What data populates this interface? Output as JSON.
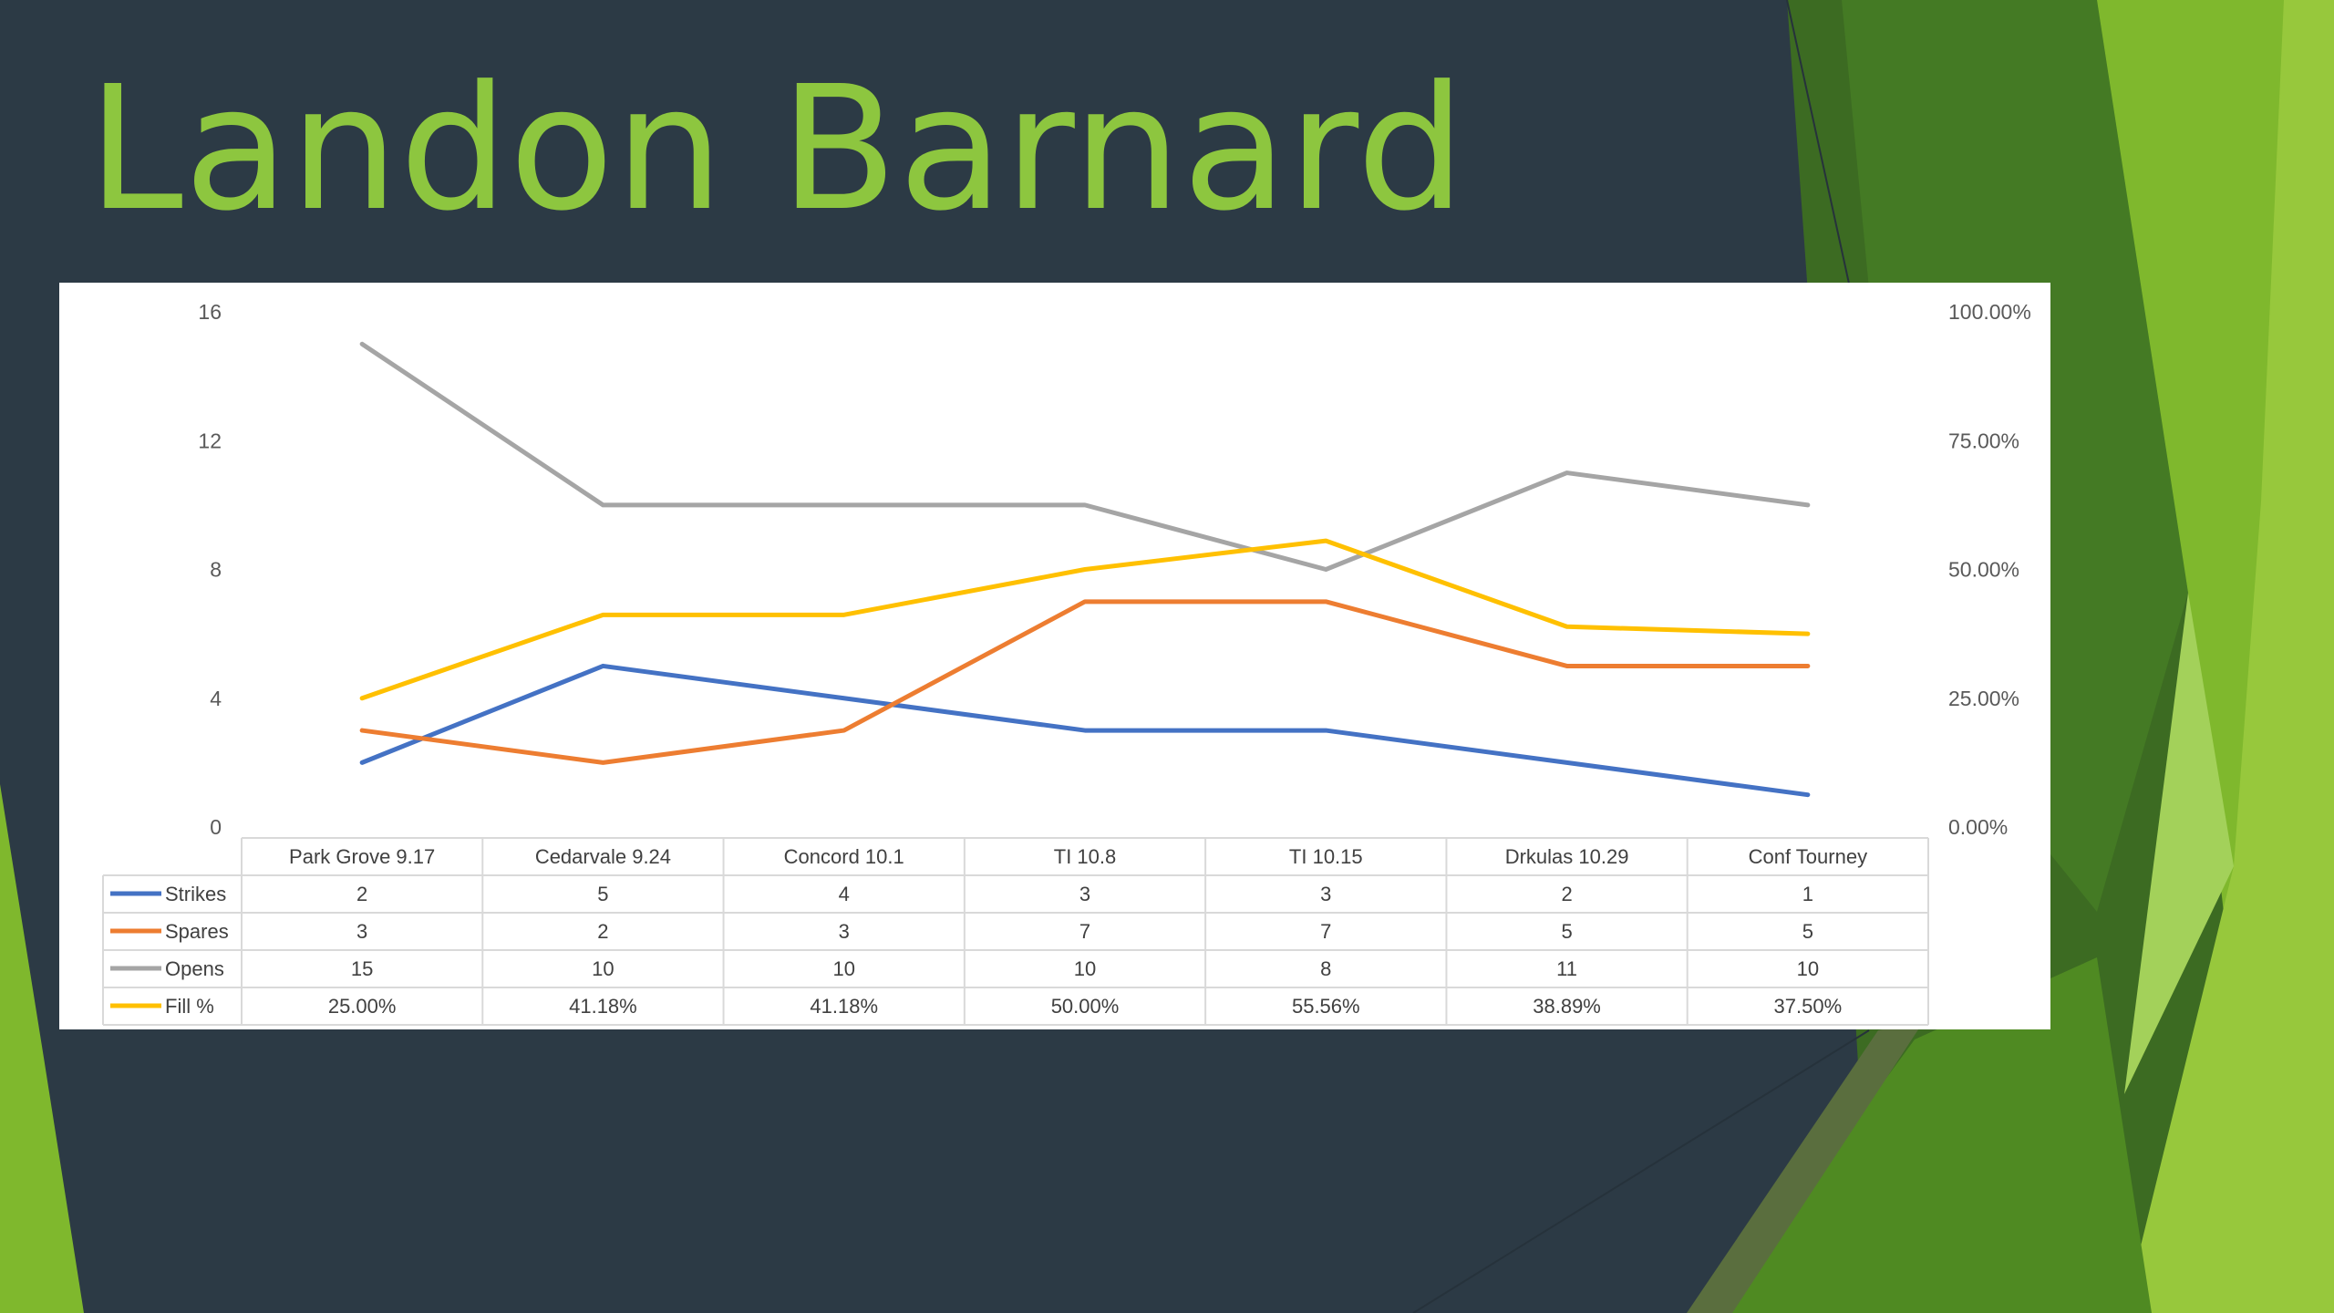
{
  "slide": {
    "title": "Landon Barnard",
    "title_color": "#8dc63f",
    "background": "#2c3a45"
  },
  "chart_data": {
    "type": "line",
    "title": "",
    "categories": [
      "Park Grove 9.17",
      "Cedarvale 9.24",
      "Concord 10.1",
      "TI 10.8",
      "TI 10.15",
      "Drkulas 10.29",
      "Conf Tourney"
    ],
    "y_left": {
      "ylim": [
        0,
        16
      ],
      "ticks": [
        "0",
        "4",
        "8",
        "12",
        "16"
      ],
      "tick_values": [
        0,
        4,
        8,
        12,
        16
      ]
    },
    "y_right": {
      "ylim": [
        0,
        1
      ],
      "ticks": [
        "0.00%",
        "25.00%",
        "50.00%",
        "75.00%",
        "100.00%"
      ],
      "tick_values": [
        0,
        0.25,
        0.5,
        0.75,
        1
      ]
    },
    "series": [
      {
        "name": "Strikes",
        "axis": "left",
        "color": "#4472c4",
        "values": [
          2,
          5,
          4,
          3,
          3,
          2,
          1
        ],
        "labels": [
          "2",
          "5",
          "4",
          "3",
          "3",
          "2",
          "1"
        ]
      },
      {
        "name": "Spares",
        "axis": "left",
        "color": "#ed7d31",
        "values": [
          3,
          2,
          3,
          7,
          7,
          5,
          5
        ],
        "labels": [
          "3",
          "2",
          "3",
          "7",
          "7",
          "5",
          "5"
        ]
      },
      {
        "name": "Opens",
        "axis": "left",
        "color": "#a5a5a5",
        "values": [
          15,
          10,
          10,
          10,
          8,
          11,
          10
        ],
        "labels": [
          "15",
          "10",
          "10",
          "10",
          "8",
          "11",
          "10"
        ]
      },
      {
        "name": "Fill %",
        "axis": "right",
        "color": "#ffc000",
        "values": [
          0.25,
          0.4118,
          0.4118,
          0.5,
          0.5556,
          0.3889,
          0.375
        ],
        "labels": [
          "25.00%",
          "41.18%",
          "41.18%",
          "50.00%",
          "55.56%",
          "38.89%",
          "37.50%"
        ]
      }
    ],
    "legend": "data-table-below",
    "grid": false
  }
}
